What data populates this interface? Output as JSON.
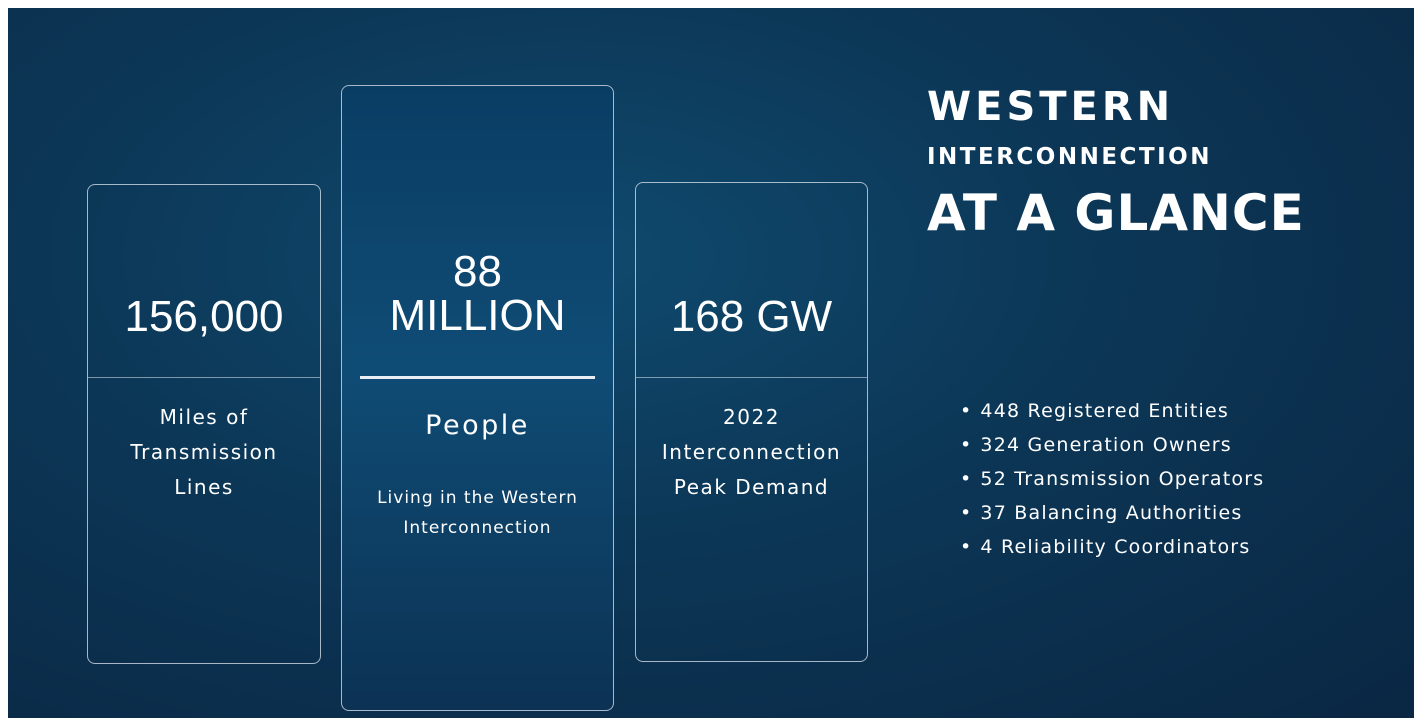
{
  "title": {
    "line1": "WESTERN",
    "line2": "INTERCONNECTION",
    "line3": "AT A GLANCE"
  },
  "cards": [
    {
      "value": [
        "156,000"
      ],
      "label": [
        "Miles of",
        "Transmission",
        "Lines"
      ],
      "sub": []
    },
    {
      "value": [
        "88",
        "MILLION"
      ],
      "label": [
        "People"
      ],
      "sub": [
        "Living in the Western",
        "Interconnection"
      ]
    },
    {
      "value": [
        "168 GW"
      ],
      "label": [
        "2022",
        "Interconnection",
        "Peak Demand"
      ],
      "sub": []
    }
  ],
  "bullets": [
    "448 Registered Entities",
    "324 Generation Owners",
    "52 Transmission Operators",
    "37 Balancing Authorities",
    "4 Reliability Coordinators"
  ]
}
